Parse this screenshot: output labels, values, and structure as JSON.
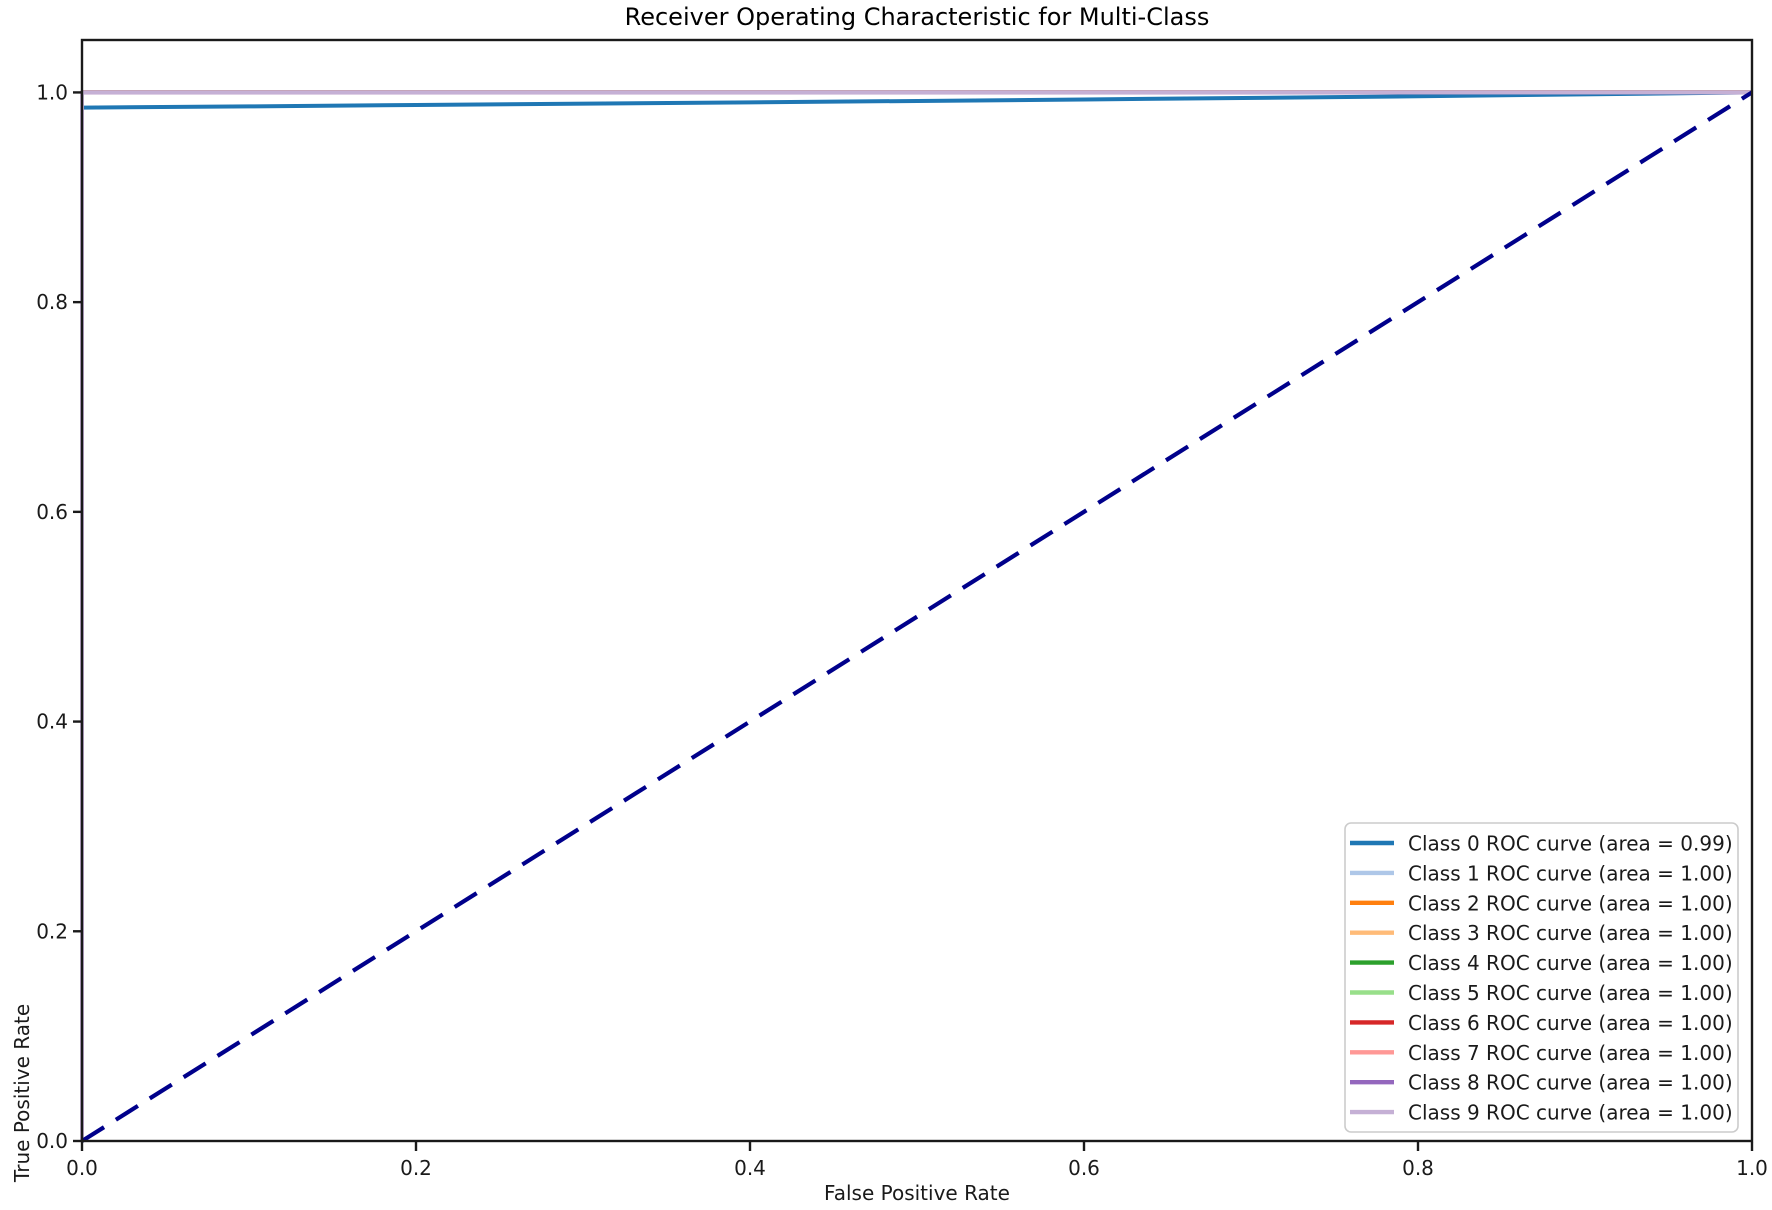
{
  "chart_data": {
    "type": "line",
    "title": "Receiver Operating Characteristic for Multi-Class",
    "xlabel": "False Positive Rate",
    "ylabel": "True Positive Rate",
    "xlim": [
      0.0,
      1.0
    ],
    "ylim": [
      0.0,
      1.05
    ],
    "xticks": [
      "0.0",
      "0.2",
      "0.4",
      "0.6",
      "0.8",
      "1.0"
    ],
    "yticks": [
      "0.0",
      "0.2",
      "0.4",
      "0.6",
      "0.8",
      "1.0"
    ],
    "grid": false,
    "axis_color": "#1a1a1a",
    "legend": {
      "position": "lower right",
      "border_color": "#cccccc",
      "background": "#ffffff"
    },
    "series": [
      {
        "class": 0,
        "label": "Class 0 ROC curve (area = 0.99)",
        "auc": "0.99",
        "color": "#1f77b4",
        "points": [
          [
            0,
            0
          ],
          [
            0,
            0.9855
          ],
          [
            0.1,
            0.9867
          ],
          [
            0.2,
            0.988
          ],
          [
            0.4,
            0.9905
          ],
          [
            0.6,
            0.9933
          ],
          [
            0.8,
            0.9963
          ],
          [
            1,
            1
          ]
        ]
      },
      {
        "class": 1,
        "label": "Class 1 ROC curve (area = 1.00)",
        "auc": "1.00",
        "color": "#aec7e8",
        "points": [
          [
            0,
            0
          ],
          [
            0,
            1
          ],
          [
            1,
            1
          ]
        ]
      },
      {
        "class": 2,
        "label": "Class 2 ROC curve (area = 1.00)",
        "auc": "1.00",
        "color": "#ff7f0e",
        "points": [
          [
            0,
            0
          ],
          [
            0,
            1
          ],
          [
            1,
            1
          ]
        ]
      },
      {
        "class": 3,
        "label": "Class 3 ROC curve (area = 1.00)",
        "auc": "1.00",
        "color": "#ffbb78",
        "points": [
          [
            0,
            0
          ],
          [
            0,
            1
          ],
          [
            1,
            1
          ]
        ]
      },
      {
        "class": 4,
        "label": "Class 4 ROC curve (area = 1.00)",
        "auc": "1.00",
        "color": "#2ca02c",
        "points": [
          [
            0,
            0
          ],
          [
            0,
            1
          ],
          [
            1,
            1
          ]
        ]
      },
      {
        "class": 5,
        "label": "Class 5 ROC curve (area = 1.00)",
        "auc": "1.00",
        "color": "#98df8a",
        "points": [
          [
            0,
            0
          ],
          [
            0,
            1
          ],
          [
            1,
            1
          ]
        ]
      },
      {
        "class": 6,
        "label": "Class 6 ROC curve (area = 1.00)",
        "auc": "1.00",
        "color": "#d62728",
        "points": [
          [
            0,
            0
          ],
          [
            0,
            1
          ],
          [
            1,
            1
          ]
        ]
      },
      {
        "class": 7,
        "label": "Class 7 ROC curve (area = 1.00)",
        "auc": "1.00",
        "color": "#ff9896",
        "points": [
          [
            0,
            0
          ],
          [
            0,
            1
          ],
          [
            1,
            1
          ]
        ]
      },
      {
        "class": 8,
        "label": "Class 8 ROC curve (area = 1.00)",
        "auc": "1.00",
        "color": "#9467bd",
        "points": [
          [
            0,
            0
          ],
          [
            0,
            1
          ],
          [
            1,
            1
          ]
        ]
      },
      {
        "class": 9,
        "label": "Class 9 ROC curve (area = 1.00)",
        "auc": "1.00",
        "color": "#c5b0d5",
        "points": [
          [
            0,
            0
          ],
          [
            0,
            1
          ],
          [
            1,
            1
          ]
        ]
      }
    ],
    "reference_line": {
      "name": "chance-diagonal",
      "color": "#00008b",
      "dashed": true,
      "points": [
        [
          0,
          0
        ],
        [
          1,
          1
        ]
      ]
    }
  }
}
